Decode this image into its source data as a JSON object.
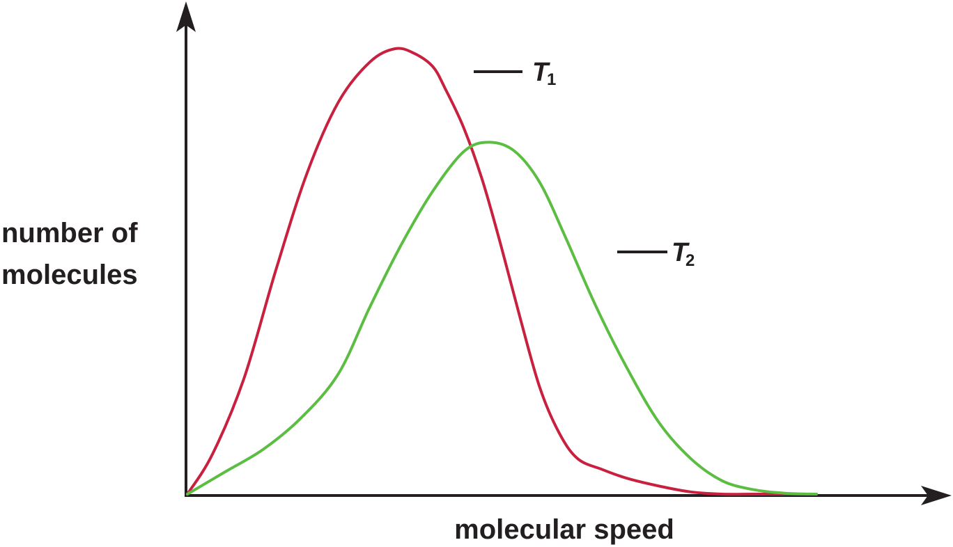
{
  "chart_data": {
    "type": "line",
    "title": "",
    "ylabel_lines": [
      "number of",
      "molecules"
    ],
    "xlabel": "molecular speed",
    "xlim": [
      0,
      1
    ],
    "ylim": [
      0,
      1
    ],
    "grid": false,
    "axis_ticks": false,
    "series": [
      {
        "name": "T1",
        "name_main": "T",
        "name_sub": "1",
        "color": "#c8203f",
        "x": [
          0,
          0.04,
          0.09,
          0.14,
          0.19,
          0.24,
          0.29,
          0.33,
          0.36,
          0.39,
          0.41,
          0.44,
          0.47,
          0.5,
          0.53,
          0.56,
          0.59,
          0.62,
          0.66,
          0.7,
          0.75,
          0.8,
          0.85,
          0.9,
          0.95,
          1
        ],
        "y": [
          0,
          0.09,
          0.26,
          0.5,
          0.72,
          0.88,
          0.97,
          1.0,
          0.99,
          0.96,
          0.91,
          0.82,
          0.7,
          0.55,
          0.39,
          0.24,
          0.14,
          0.08,
          0.055,
          0.035,
          0.018,
          0.005,
          0,
          0,
          0,
          0
        ]
      },
      {
        "name": "T2",
        "name_main": "T",
        "name_sub": "2",
        "color": "#5bbd42",
        "x": [
          0,
          0.06,
          0.12,
          0.18,
          0.24,
          0.29,
          0.34,
          0.39,
          0.44,
          0.48,
          0.52,
          0.56,
          0.6,
          0.65,
          0.7,
          0.75,
          0.8,
          0.85,
          0.9,
          0.95,
          1
        ],
        "y": [
          0,
          0.05,
          0.1,
          0.17,
          0.27,
          0.42,
          0.56,
          0.68,
          0.77,
          0.79,
          0.77,
          0.7,
          0.58,
          0.42,
          0.28,
          0.16,
          0.08,
          0.03,
          0.01,
          0.002,
          0
        ]
      }
    ]
  }
}
